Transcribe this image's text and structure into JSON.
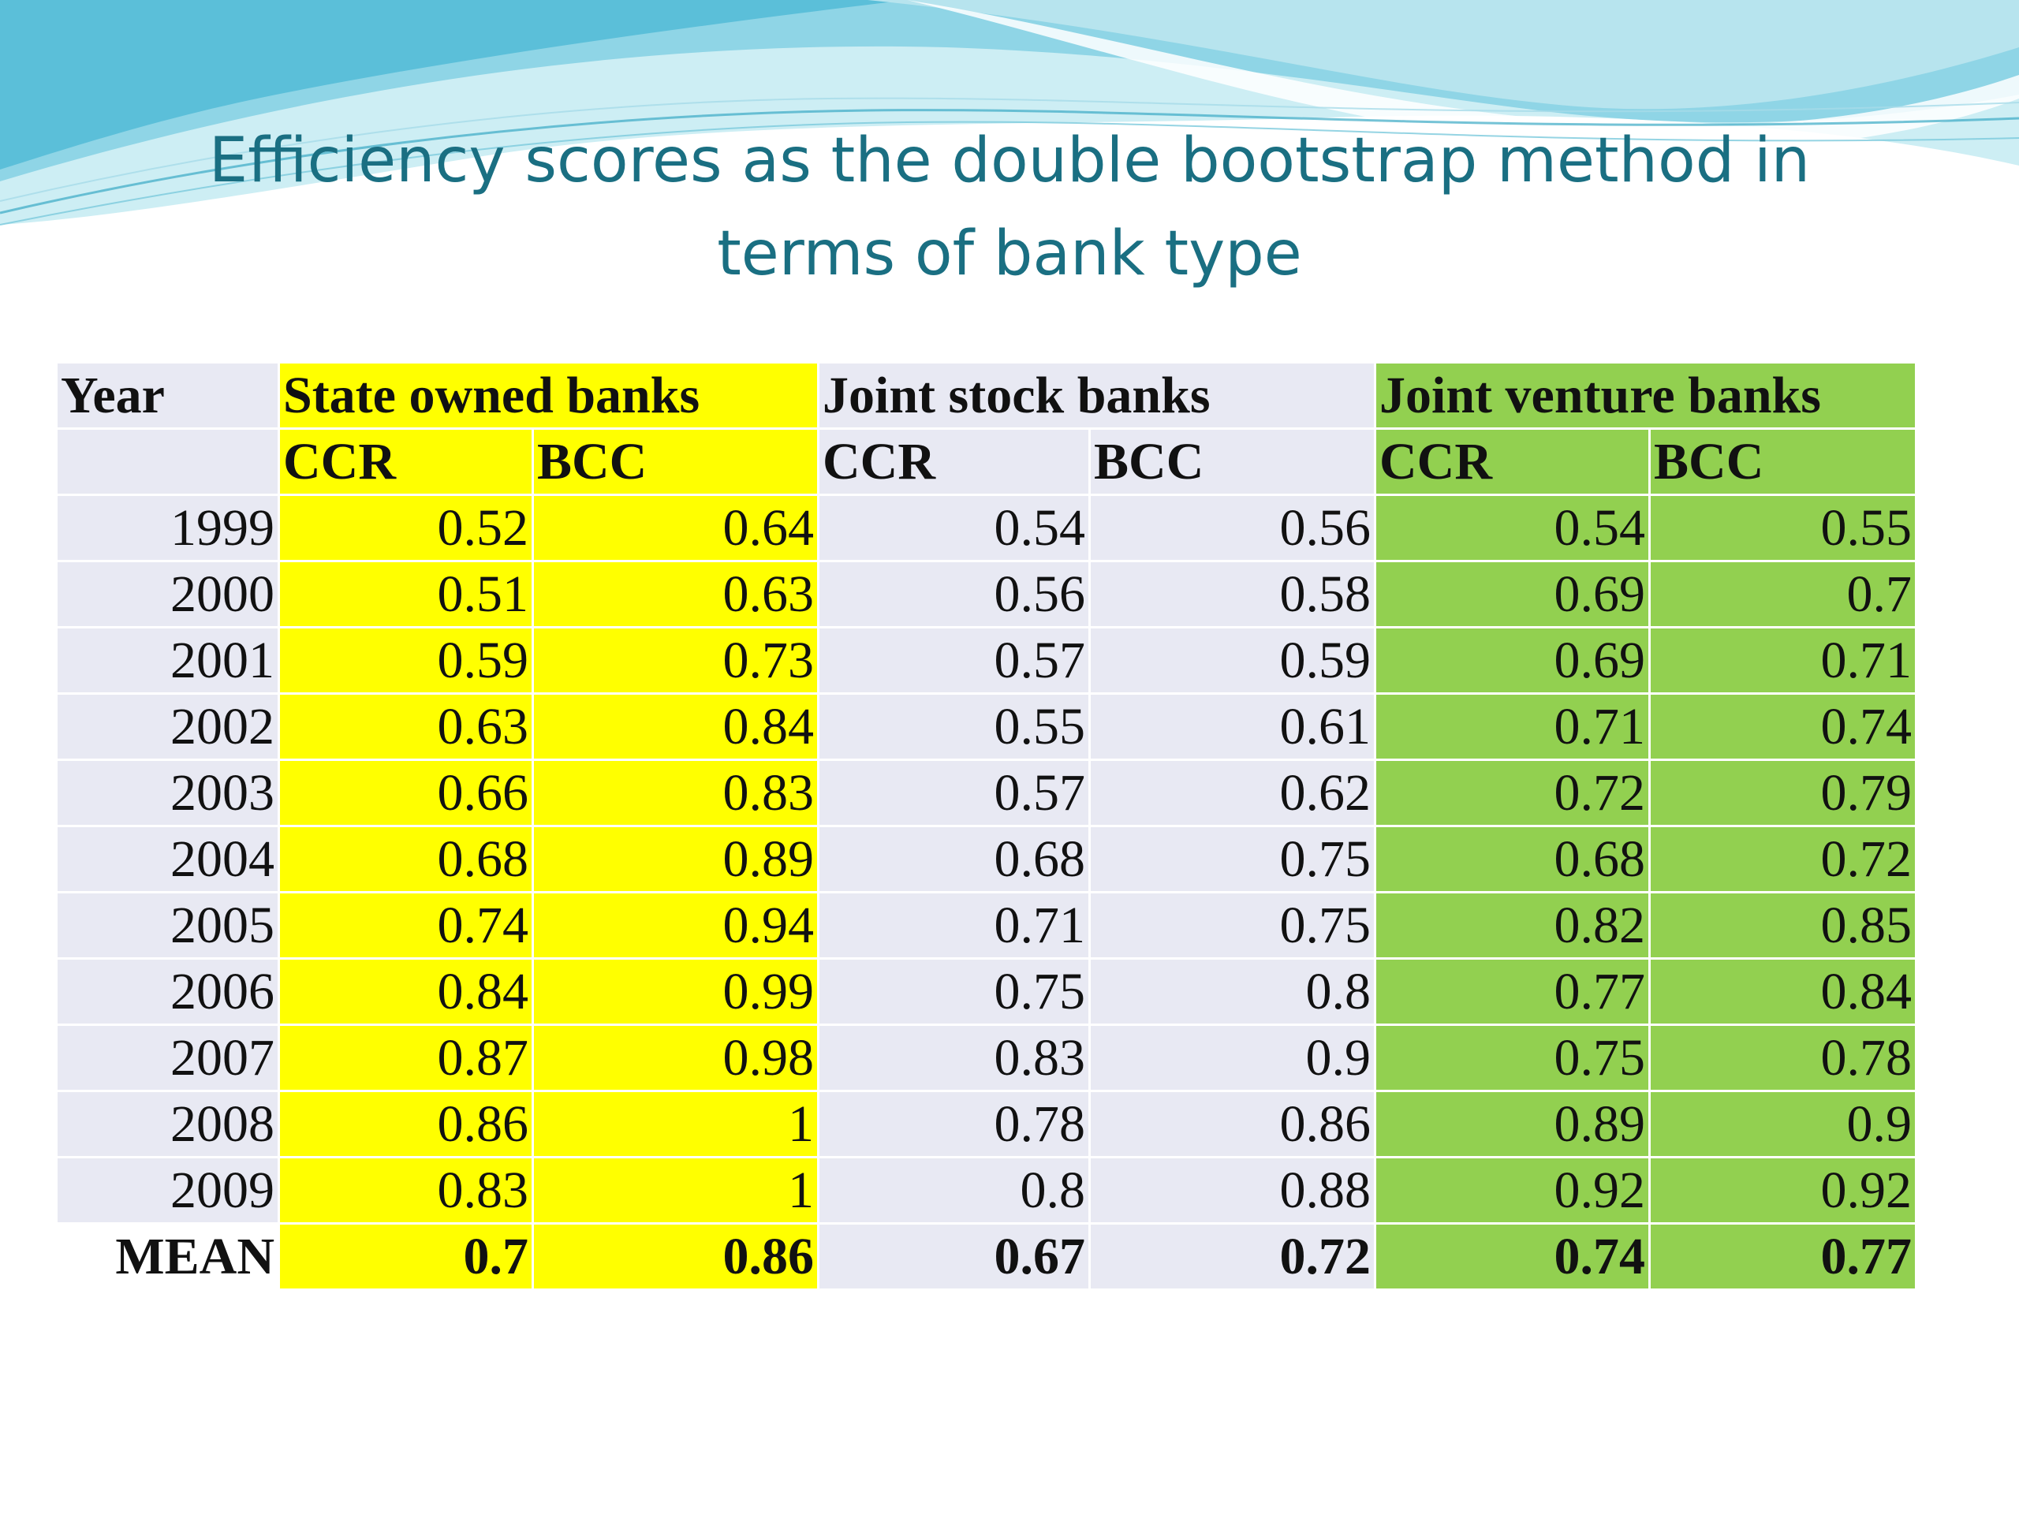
{
  "slide": {
    "title_line1": "Efficiency scores as the double bootstrap method in",
    "title_line2": "terms of bank type"
  },
  "colors": {
    "title": "#1a6f82",
    "state_owned_bg": "#ffff00",
    "joint_stock_bg": "#e8e9f3",
    "joint_venture_bg": "#92d050",
    "wave_light": "#bfe8f0",
    "wave_mid": "#6cc5dc",
    "wave_dark": "#2aa3c2"
  },
  "table": {
    "year_header": "Year",
    "groups": [
      "State owned banks",
      "Joint stock banks",
      "Joint venture banks"
    ],
    "subheaders": [
      "CCR",
      "BCC",
      "CCR",
      "BCC",
      "CCR",
      "BCC"
    ],
    "rows": [
      {
        "label": "1999",
        "values": [
          "0.52",
          "0.64",
          "0.54",
          "0.56",
          "0.54",
          "0.55"
        ]
      },
      {
        "label": "2000",
        "values": [
          "0.51",
          "0.63",
          "0.56",
          "0.58",
          "0.69",
          "0.7"
        ]
      },
      {
        "label": "2001",
        "values": [
          "0.59",
          "0.73",
          "0.57",
          "0.59",
          "0.69",
          "0.71"
        ]
      },
      {
        "label": "2002",
        "values": [
          "0.63",
          "0.84",
          "0.55",
          "0.61",
          "0.71",
          "0.74"
        ]
      },
      {
        "label": "2003",
        "values": [
          "0.66",
          "0.83",
          "0.57",
          "0.62",
          "0.72",
          "0.79"
        ]
      },
      {
        "label": "2004",
        "values": [
          "0.68",
          "0.89",
          "0.68",
          "0.75",
          "0.68",
          "0.72"
        ]
      },
      {
        "label": "2005",
        "values": [
          "0.74",
          "0.94",
          "0.71",
          "0.75",
          "0.82",
          "0.85"
        ]
      },
      {
        "label": "2006",
        "values": [
          "0.84",
          "0.99",
          "0.75",
          "0.8",
          "0.77",
          "0.84"
        ]
      },
      {
        "label": "2007",
        "values": [
          "0.87",
          "0.98",
          "0.83",
          "0.9",
          "0.75",
          "0.78"
        ]
      },
      {
        "label": "2008",
        "values": [
          "0.86",
          "1",
          "0.78",
          "0.86",
          "0.89",
          "0.9"
        ]
      },
      {
        "label": "2009",
        "values": [
          "0.83",
          "1",
          "0.8",
          "0.88",
          "0.92",
          "0.92"
        ]
      }
    ],
    "mean": {
      "label": "MEAN",
      "values": [
        "0.7",
        "0.86",
        "0.67",
        "0.72",
        "0.74",
        "0.77"
      ]
    }
  }
}
